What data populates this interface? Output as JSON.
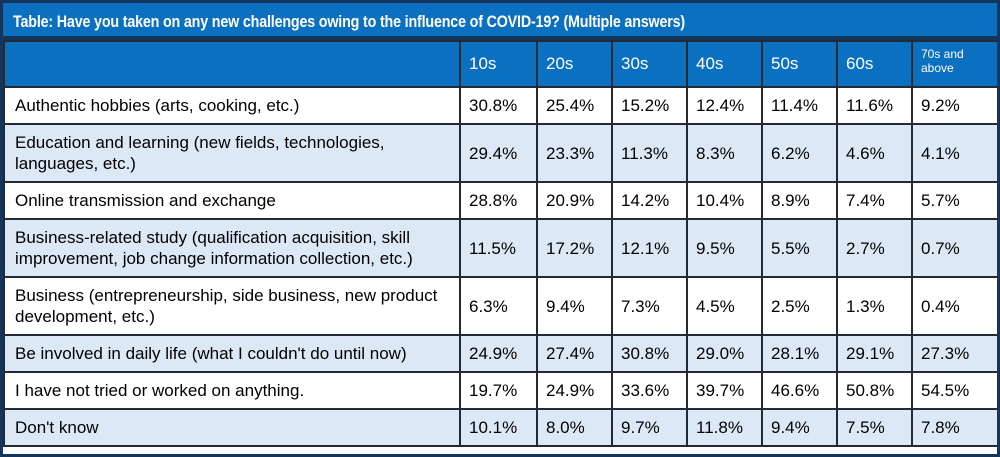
{
  "chart_data": {
    "type": "table",
    "title": "Table: Have you taken on any new challenges owing to the influence of COVID-19? (Multiple answers)",
    "columns": [
      "10s",
      "20s",
      "30s",
      "40s",
      "50s",
      "60s",
      "70s and above"
    ],
    "rows": [
      {
        "label": "Authentic hobbies (arts, cooking, etc.)",
        "values": [
          "30.8%",
          "25.4%",
          "15.2%",
          "12.4%",
          "11.4%",
          "11.6%",
          "9.2%"
        ]
      },
      {
        "label": "Education and learning (new fields, technologies, languages, etc.)",
        "values": [
          "29.4%",
          "23.3%",
          "11.3%",
          "8.3%",
          "6.2%",
          "4.6%",
          "4.1%"
        ]
      },
      {
        "label": "Online transmission and exchange",
        "values": [
          "28.8%",
          "20.9%",
          "14.2%",
          "10.4%",
          "8.9%",
          "7.4%",
          "5.7%"
        ]
      },
      {
        "label": "Business-related study (qualification acquisition, skill improvement, job change information collection, etc.)",
        "values": [
          "11.5%",
          "17.2%",
          "12.1%",
          "9.5%",
          "5.5%",
          "2.7%",
          "0.7%"
        ]
      },
      {
        "label": "Business (entrepreneurship, side business, new product development, etc.)",
        "values": [
          "6.3%",
          "9.4%",
          "7.3%",
          "4.5%",
          "2.5%",
          "1.3%",
          "0.4%"
        ]
      },
      {
        "label": "Be involved in daily life (what I couldn't do until now)",
        "values": [
          "24.9%",
          "27.4%",
          "30.8%",
          "29.0%",
          "28.1%",
          "29.1%",
          "27.3%"
        ]
      },
      {
        "label": "I have not tried or worked on anything.",
        "values": [
          "19.7%",
          "24.9%",
          "33.6%",
          "39.7%",
          "46.6%",
          "50.8%",
          "54.5%"
        ]
      },
      {
        "label": "Don't know",
        "values": [
          "10.1%",
          "8.0%",
          "9.7%",
          "11.8%",
          "9.4%",
          "7.5%",
          "7.8%"
        ]
      }
    ],
    "layout": {
      "legend": "none",
      "grid": "full cell borders",
      "row_striping": "alternating white and light blue starting with white"
    }
  },
  "colors": {
    "header_blue": "#0b70c0",
    "stripe_light_blue": "#dce8f5",
    "frame_navy": "#15355c",
    "cell_border": "#222a33",
    "header_text": "#ffffff",
    "body_text": "#000000"
  }
}
